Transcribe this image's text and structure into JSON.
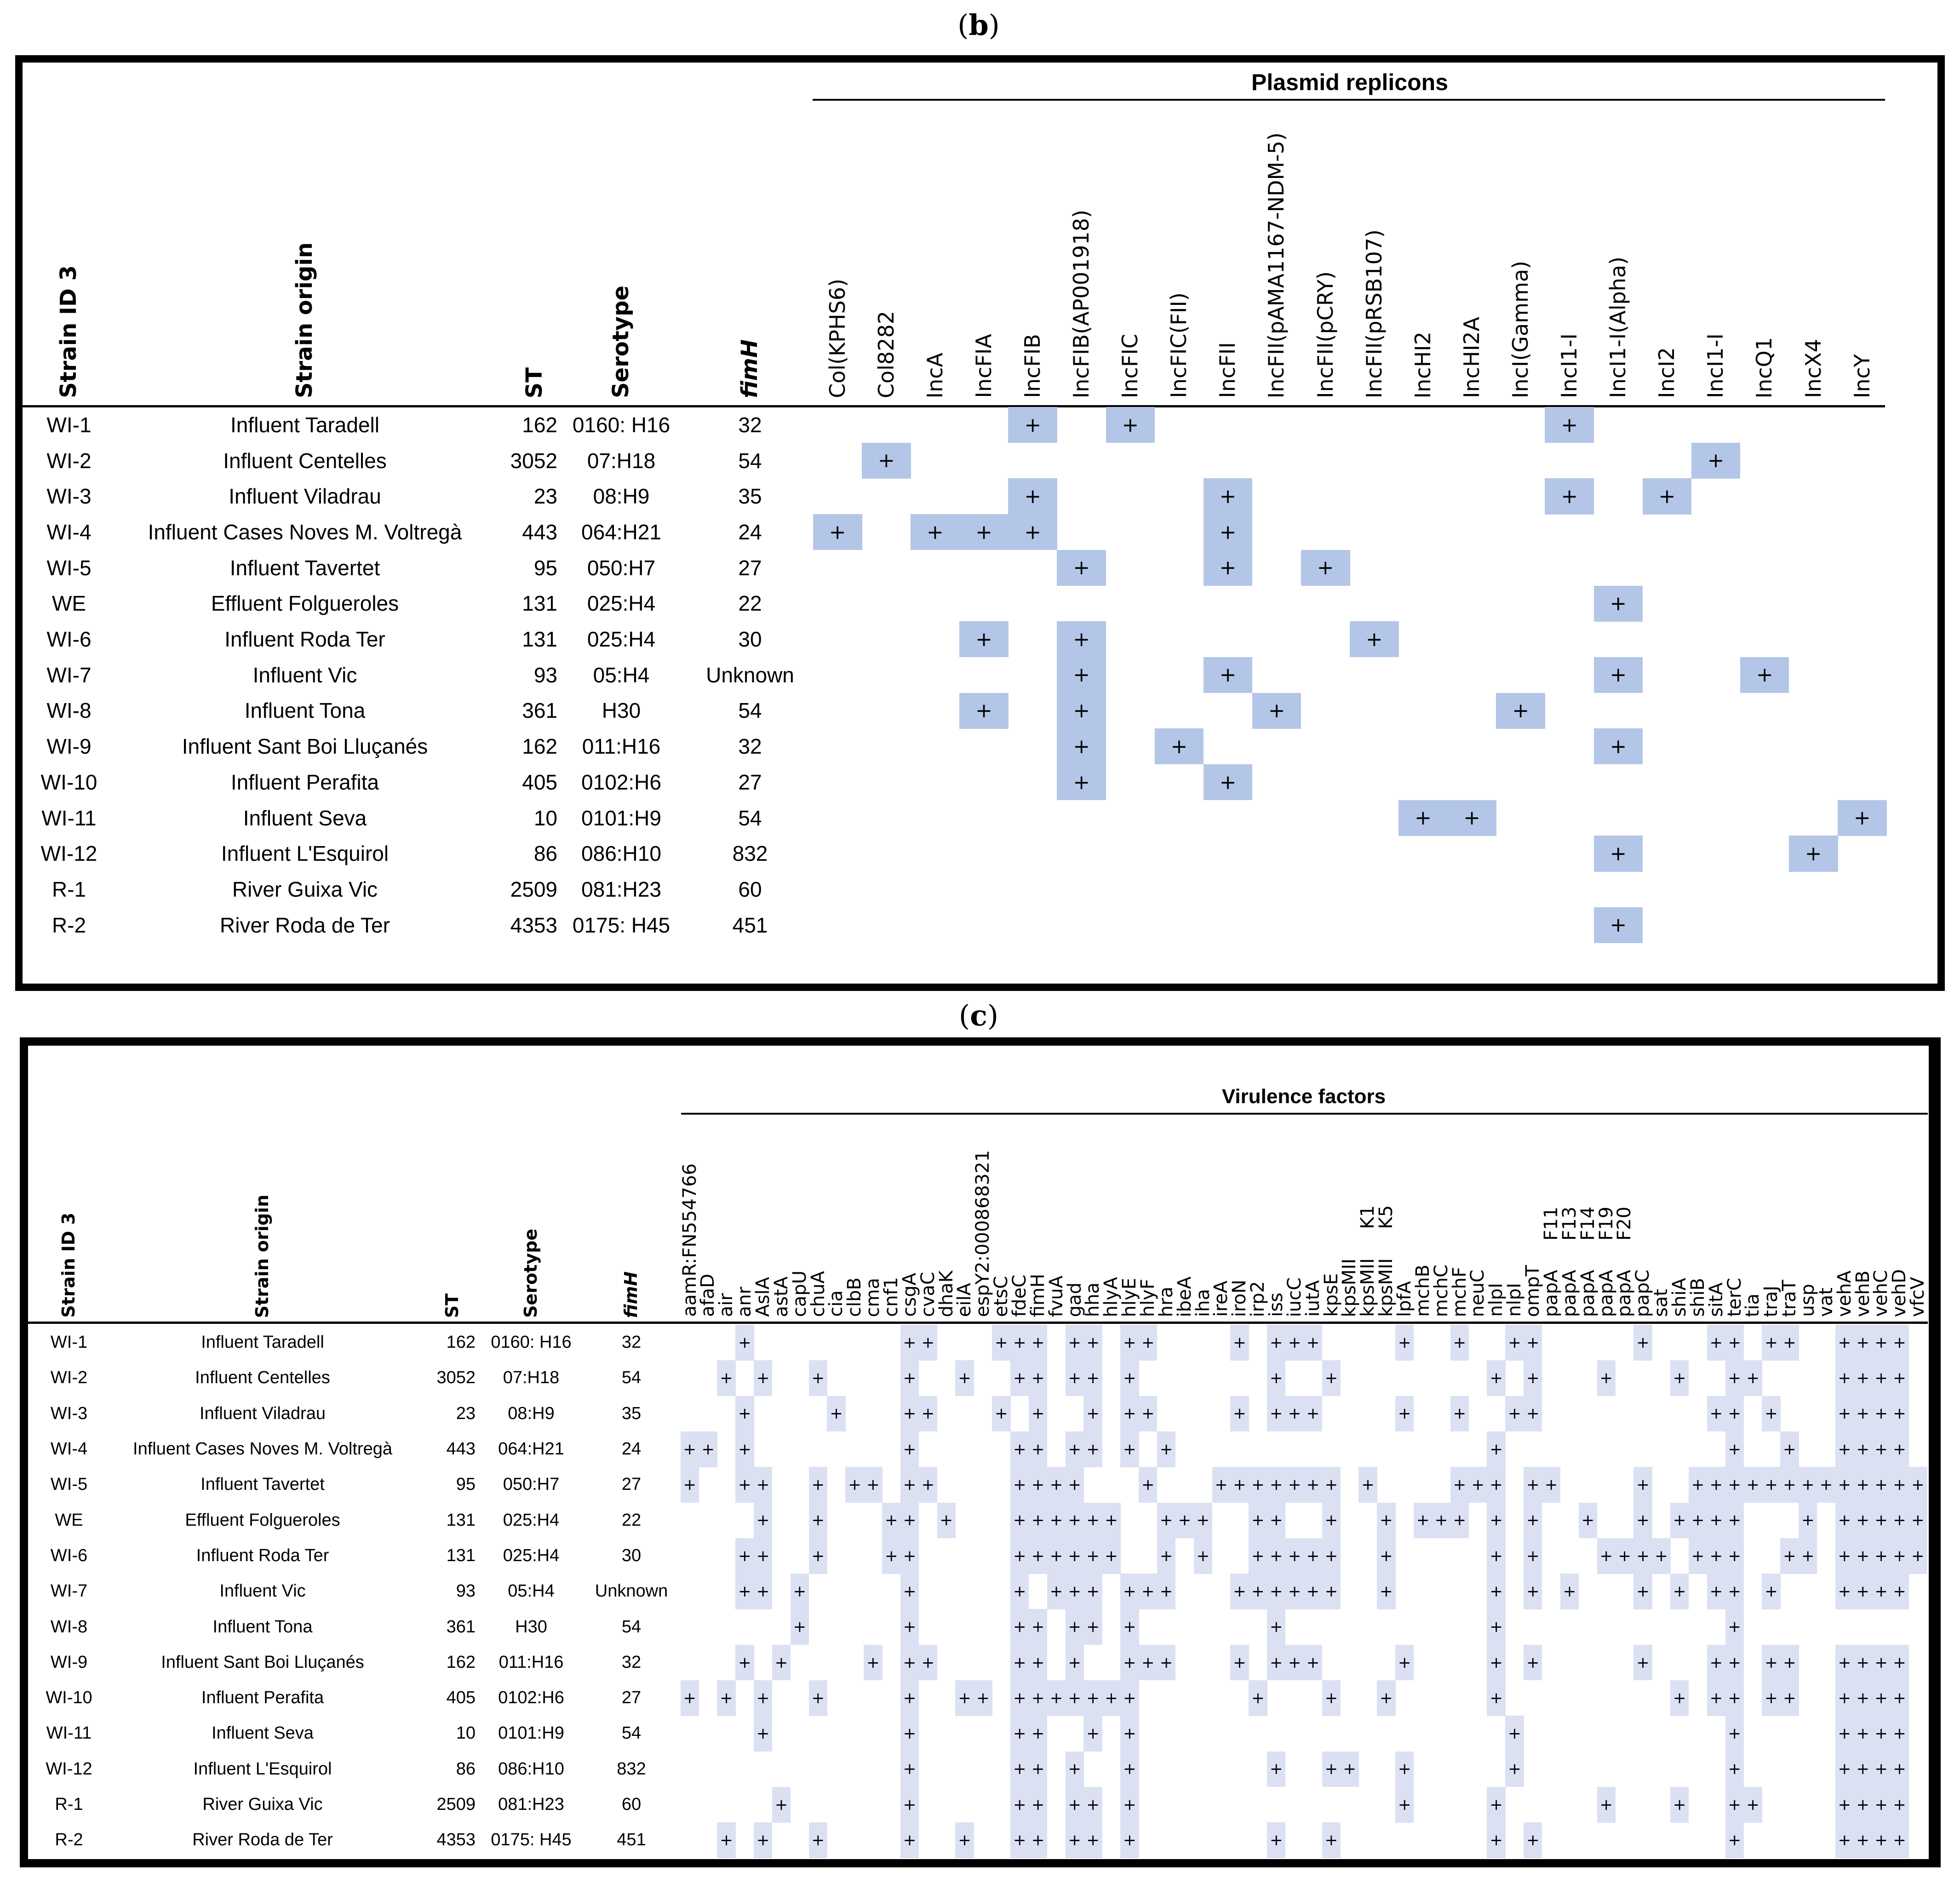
{
  "panel_b": {
    "caption_open": "(",
    "caption_letter": "b",
    "caption_close": ")",
    "group_title": "Plasmid replicons",
    "headers": {
      "strain_id": "Strain ID 3",
      "strain_origin": "Strain origin",
      "st": "ST",
      "serotype": "Serotype",
      "fimh": "fimH"
    },
    "columns": [
      "Col(KPHS6)",
      "Col8282",
      "IncA",
      "IncFIA",
      "IncFIB",
      "IncFIB(AP001918)",
      "IncFIC",
      "IncFIC(FII)",
      "IncFII",
      "IncFII(pAMA1167-NDM-5)",
      "IncFII(pCRY)",
      "IncFII(pRSB107)",
      "IncHI2",
      "IncHI2A",
      "IncI(Gamma)",
      "IncI1-I",
      "IncI1-I(Alpha)",
      "IncI2",
      "IncI1-I",
      "IncQ1",
      "IncX4",
      "IncY"
    ],
    "positive_columns": [
      [
        5,
        7,
        16
      ],
      [
        2,
        19
      ],
      [
        5,
        9,
        16,
        18
      ],
      [
        1,
        3,
        4,
        5,
        9
      ],
      [
        6,
        9,
        11
      ],
      [
        17
      ],
      [
        4,
        6,
        12
      ],
      [
        6,
        9,
        17,
        20
      ],
      [
        4,
        6,
        10,
        15
      ],
      [
        6,
        8,
        17
      ],
      [
        6,
        9
      ],
      [
        13,
        14,
        22
      ],
      [
        17,
        21
      ],
      [],
      [
        17
      ]
    ]
  },
  "panel_c": {
    "caption_open": "(",
    "caption_letter": "c",
    "caption_close": ")",
    "group_title": "Virulence factors",
    "headers": {
      "strain_id": "Strain ID 3",
      "strain_origin": "Strain origin",
      "st": "ST",
      "serotype": "Serotype",
      "fimh": "fimH"
    },
    "columns": [
      "aamR:FN554766",
      "afaD",
      "air",
      "anr",
      "AslA",
      "astA",
      "capU",
      "chuA",
      "cia",
      "clbB",
      "cma",
      "cnf1",
      "csgA",
      "cvaC",
      "dhaK",
      "eilA",
      "espY2:000868321",
      "etsC",
      "fdeC",
      "fimH",
      "fvuA",
      "gad",
      "hha",
      "hlyA",
      "hlyE",
      "hlyF",
      "hra",
      "ibeA",
      "iha",
      "ireA",
      "iroN",
      "irp2",
      "iss",
      "iucC",
      "iutA",
      "kpsE",
      "kpsMII",
      "kpsMII     K1",
      "kpsMII     K5",
      "lpfA",
      "mchB",
      "mchC",
      "mchF",
      "neuC",
      "nlpI",
      "nlpI",
      "ompT",
      "papA     F11",
      "papA     F13",
      "papA     F14",
      "papA     F19",
      "papA     F20",
      "papC",
      "sat",
      "shiA",
      "shiB",
      "sitA",
      "terC",
      "tia",
      "traJ",
      "traT",
      "usp",
      "vat",
      "vehA",
      "vehB",
      "vehC",
      "vehD",
      "vfcV"
    ],
    "positive_columns": [
      [
        4,
        13,
        14,
        18,
        19,
        20,
        22,
        23,
        25,
        26,
        31,
        33,
        34,
        35,
        40,
        43,
        46,
        47,
        53,
        57,
        58,
        60,
        61,
        64,
        65,
        66,
        67
      ],
      [
        3,
        5,
        8,
        13,
        16,
        19,
        20,
        22,
        23,
        25,
        33,
        36,
        45,
        47,
        51,
        55,
        58,
        59,
        64,
        65,
        66,
        67
      ],
      [
        4,
        9,
        13,
        14,
        18,
        20,
        23,
        25,
        26,
        31,
        33,
        34,
        35,
        40,
        43,
        46,
        47,
        57,
        58,
        60,
        64,
        65,
        66,
        67
      ],
      [
        1,
        2,
        4,
        13,
        19,
        20,
        22,
        23,
        25,
        27,
        45,
        58,
        61,
        64,
        65,
        66,
        67
      ],
      [
        1,
        4,
        5,
        8,
        10,
        11,
        13,
        14,
        19,
        20,
        21,
        22,
        26,
        30,
        31,
        32,
        33,
        34,
        35,
        36,
        38,
        43,
        44,
        45,
        47,
        48,
        53,
        56,
        57,
        58,
        59,
        60,
        61,
        62,
        63,
        64,
        65,
        66,
        67,
        68
      ],
      [
        5,
        8,
        12,
        13,
        15,
        19,
        20,
        21,
        22,
        23,
        24,
        27,
        28,
        29,
        32,
        33,
        36,
        39,
        41,
        42,
        43,
        45,
        47,
        50,
        53,
        55,
        56,
        57,
        58,
        62,
        64,
        65,
        66,
        67,
        68
      ],
      [
        4,
        5,
        8,
        12,
        13,
        19,
        20,
        21,
        22,
        23,
        24,
        27,
        29,
        32,
        33,
        34,
        35,
        36,
        39,
        45,
        47,
        51,
        52,
        53,
        54,
        56,
        57,
        58,
        61,
        62,
        64,
        65,
        66,
        67,
        68
      ],
      [
        4,
        5,
        7,
        13,
        19,
        21,
        22,
        23,
        25,
        26,
        27,
        31,
        32,
        33,
        34,
        35,
        36,
        39,
        45,
        47,
        49,
        53,
        55,
        57,
        58,
        60,
        64,
        65,
        66,
        67
      ],
      [
        7,
        13,
        19,
        20,
        22,
        23,
        25,
        33,
        45,
        58
      ],
      [
        4,
        6,
        11,
        13,
        14,
        19,
        20,
        22,
        25,
        26,
        27,
        31,
        33,
        34,
        35,
        40,
        45,
        47,
        53,
        57,
        58,
        60,
        61,
        64,
        65,
        66,
        67
      ],
      [
        1,
        3,
        5,
        8,
        13,
        16,
        17,
        19,
        20,
        21,
        22,
        23,
        24,
        25,
        32,
        36,
        39,
        45,
        55,
        57,
        58,
        60,
        61,
        64,
        65,
        66,
        67
      ],
      [
        5,
        13,
        19,
        20,
        23,
        25,
        46,
        58,
        64,
        65,
        66,
        67
      ],
      [
        13,
        19,
        20,
        22,
        25,
        33,
        36,
        37,
        40,
        46,
        58,
        64,
        65,
        66,
        67
      ],
      [
        6,
        13,
        19,
        20,
        22,
        23,
        25,
        40,
        45,
        51,
        55,
        58,
        59,
        64,
        65,
        66,
        67
      ],
      [
        3,
        5,
        8,
        13,
        16,
        19,
        20,
        22,
        23,
        25,
        33,
        36,
        45,
        47,
        58,
        64,
        65,
        66,
        67
      ]
    ]
  },
  "mark": "+",
  "strains": [
    {
      "id": "WI-1",
      "origin": "Influent Taradell",
      "st": "162",
      "serotype": "0160: H16",
      "fimh": "32"
    },
    {
      "id": "WI-2",
      "origin": "Influent Centelles",
      "st": "3052",
      "serotype": "07:H18",
      "fimh": "54"
    },
    {
      "id": "WI-3",
      "origin": "Influent Viladrau",
      "st": "23",
      "serotype": "08:H9",
      "fimh": "35"
    },
    {
      "id": "WI-4",
      "origin": "Influent Cases Noves M. Voltregà",
      "st": "443",
      "serotype": "064:H21",
      "fimh": "24"
    },
    {
      "id": "WI-5",
      "origin": "Influent Tavertet",
      "st": "95",
      "serotype": "050:H7",
      "fimh": "27"
    },
    {
      "id": "WE",
      "origin": "Effluent Folgueroles",
      "st": "131",
      "serotype": "025:H4",
      "fimh": "22"
    },
    {
      "id": "WI-6",
      "origin": "Influent Roda Ter",
      "st": "131",
      "serotype": "025:H4",
      "fimh": "30"
    },
    {
      "id": "WI-7",
      "origin": "Influent Vic",
      "st": "93",
      "serotype": "05:H4",
      "fimh": "Unknown"
    },
    {
      "id": "WI-8",
      "origin": "Influent Tona",
      "st": "361",
      "serotype": "H30",
      "fimh": "54"
    },
    {
      "id": "WI-9",
      "origin": "Influent Sant Boi Lluçanés",
      "st": "162",
      "serotype": "011:H16",
      "fimh": "32"
    },
    {
      "id": "WI-10",
      "origin": "Influent Perafita",
      "st": "405",
      "serotype": "0102:H6",
      "fimh": "27"
    },
    {
      "id": "WI-11",
      "origin": "Influent Seva",
      "st": "10",
      "serotype": "0101:H9",
      "fimh": "54"
    },
    {
      "id": "WI-12",
      "origin": "Influent L'Esquirol",
      "st": "86",
      "serotype": "086:H10",
      "fimh": "832"
    },
    {
      "id": "R-1",
      "origin": "River Guixa Vic",
      "st": "2509",
      "serotype": "081:H23",
      "fimh": "60"
    },
    {
      "id": "R-2",
      "origin": "River Roda de Ter",
      "st": "4353",
      "serotype": "0175: H45",
      "fimh": "451"
    }
  ]
}
